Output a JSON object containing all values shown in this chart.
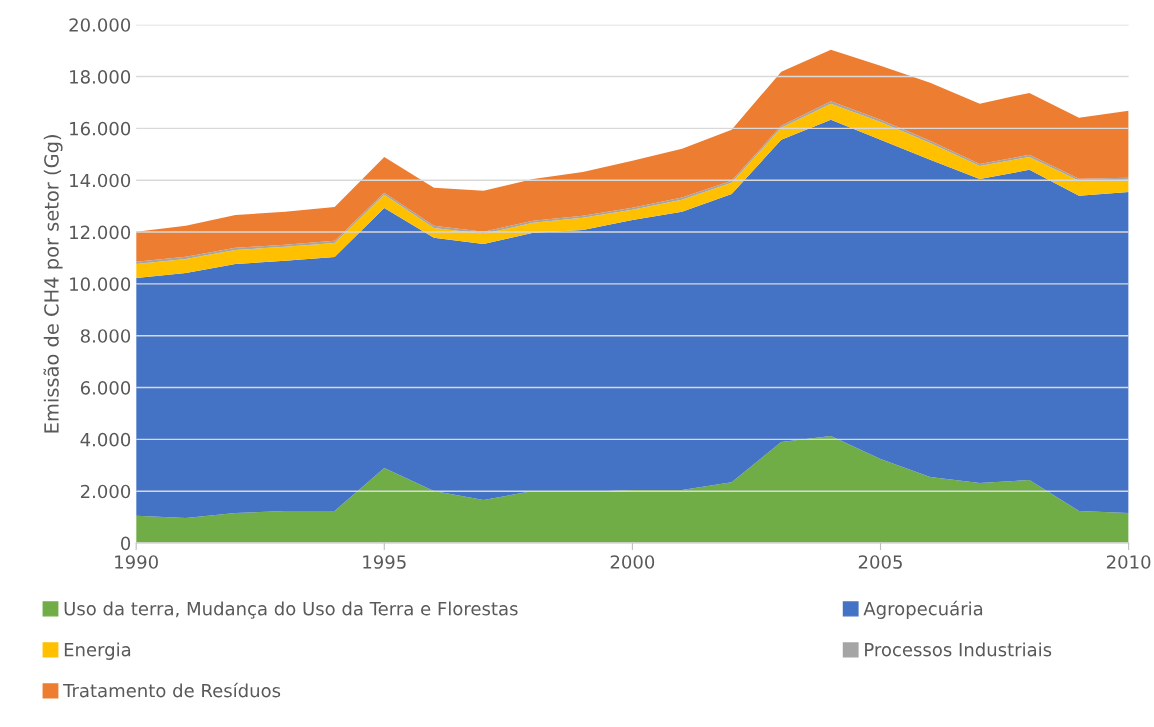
{
  "chart_data": {
    "type": "area",
    "stacked": true,
    "ylabel": "Emissão de CH4 por setor (Gg)",
    "x": [
      1990,
      1991,
      1992,
      1993,
      1994,
      1995,
      1996,
      1997,
      1998,
      1999,
      2000,
      2001,
      2002,
      2003,
      2004,
      2005,
      2006,
      2007,
      2008,
      2009,
      2010
    ],
    "series": [
      {
        "name": "Uso da terra, Mudança do Uso da Terra e Florestas",
        "color": "#70ad47",
        "values": [
          1050,
          970,
          1160,
          1240,
          1240,
          2900,
          2010,
          1660,
          2010,
          1970,
          2050,
          2050,
          2350,
          3900,
          4130,
          3240,
          2550,
          2320,
          2430,
          1240,
          1160
        ]
      },
      {
        "name": "Agropecuária",
        "color": "#4472c4",
        "values": [
          9180,
          9450,
          9610,
          9650,
          9800,
          10030,
          9770,
          9880,
          9960,
          10110,
          10420,
          10730,
          11120,
          11660,
          12200,
          12320,
          12240,
          11730,
          11970,
          12160,
          12390
        ]
      },
      {
        "name": "Energia",
        "color": "#ffc000",
        "values": [
          540,
          545,
          540,
          540,
          540,
          510,
          380,
          390,
          390,
          470,
          390,
          470,
          430,
          460,
          620,
          690,
          650,
          500,
          500,
          580,
          470
        ]
      },
      {
        "name": "Processos Industriais",
        "color": "#a5a5a5",
        "values": [
          80,
          80,
          80,
          80,
          80,
          80,
          80,
          80,
          80,
          80,
          80,
          80,
          80,
          80,
          100,
          80,
          80,
          80,
          80,
          80,
          80
        ]
      },
      {
        "name": "Tratamento de Resíduos",
        "color": "#ed7d31",
        "values": [
          1160,
          1200,
          1270,
          1270,
          1310,
          1380,
          1470,
          1580,
          1610,
          1690,
          1810,
          1880,
          1970,
          2090,
          1980,
          2090,
          2240,
          2320,
          2390,
          2350,
          2580
        ]
      }
    ],
    "xlim": [
      1990,
      2010
    ],
    "xticks": [
      1990,
      1995,
      2000,
      2005,
      2010
    ],
    "ylim": [
      0,
      20000
    ],
    "yticks": [
      0,
      {
        "value": 2000,
        "label": "2.000"
      },
      {
        "value": 4000,
        "label": "4.000"
      },
      {
        "value": 6000,
        "label": "6.000"
      },
      {
        "value": 8000,
        "label": "8.000"
      },
      {
        "value": 10000,
        "label": "10.000"
      },
      {
        "value": 12000,
        "label": "12.000"
      },
      {
        "value": 14000,
        "label": "14.000"
      },
      {
        "value": 16000,
        "label": "16.000"
      },
      {
        "value": 18000,
        "label": "18.000"
      },
      {
        "value": 20000,
        "label": "20.000"
      }
    ],
    "grid": "y",
    "legend": "bottom"
  }
}
